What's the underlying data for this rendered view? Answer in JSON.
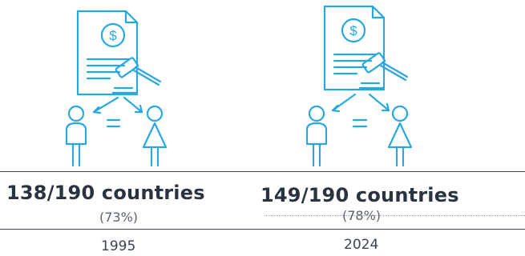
{
  "panels": [
    {
      "stat": "138/190 countries",
      "percent": "(73%)",
      "year": "1995",
      "icon_symbol": "$"
    },
    {
      "stat": "149/190 countries",
      "percent": "(78%)",
      "year": "2024",
      "icon_symbol": "$"
    }
  ],
  "colors": {
    "accent": "#29a8df",
    "rule": "#3d4a5c",
    "text": "#2a3340"
  },
  "icons": [
    "legal-document-gavel-equality-icon"
  ]
}
